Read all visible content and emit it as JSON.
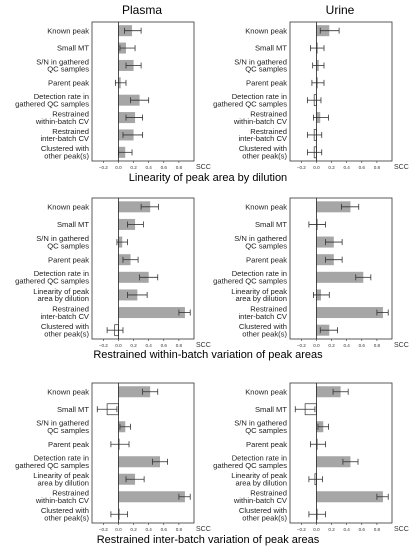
{
  "columns": [
    "Plasma",
    "Urine"
  ],
  "row_titles": [
    "Linearity of peak area by dilution",
    "Restrained within-batch variation of peak areas",
    "Restrained inter-batch variation of peak areas"
  ],
  "axis": {
    "label": "SCC",
    "ticks": [
      "−0.2",
      "0.0",
      "0.2",
      "0.4",
      "0.6",
      "0.8"
    ],
    "tick_values": [
      -0.2,
      0.0,
      0.2,
      0.4,
      0.6,
      0.8
    ],
    "xlim": [
      -0.35,
      1.0
    ]
  },
  "colors": {
    "bar_fill": "#a6a6a6",
    "open_fill": "#ffffff",
    "stroke": "#333333",
    "frame": "#333333",
    "zero_line": "#222222"
  },
  "chart_data": [
    {
      "type": "bar",
      "orientation": "horizontal",
      "panel": "Plasma / Linearity of peak area by dilution",
      "categories": [
        "Known peak",
        "Small MT",
        "S/N in gathered\nQC samples",
        "Parent peak",
        "Detection rate in\ngathered QC samples",
        "Restrained\nwithin-batch CV",
        "Restrained\ninter-batch CV",
        "Clustered with\nother peak(s)"
      ],
      "values": [
        0.18,
        0.1,
        0.2,
        0.03,
        0.28,
        0.22,
        0.2,
        0.09
      ],
      "error_low": [
        0.08,
        0.02,
        0.1,
        -0.04,
        0.16,
        0.1,
        0.06,
        0.0
      ],
      "error_high": [
        0.3,
        0.22,
        0.3,
        0.1,
        0.4,
        0.32,
        0.32,
        0.18
      ],
      "xlabel": "SCC",
      "xlim": [
        -0.35,
        1.0
      ],
      "grid": false
    },
    {
      "type": "bar",
      "orientation": "horizontal",
      "panel": "Urine / Linearity of peak area by dilution",
      "categories": [
        "Known peak",
        "Small MT",
        "S/N in gathered\nQC samples",
        "Parent peak",
        "Detection rate in\ngathered QC samples",
        "Restrained\nwithin-batch CV",
        "Restrained\ninter-batch CV",
        "Clustered with\nother peak(s)"
      ],
      "values": [
        0.17,
        0.02,
        0.03,
        0.02,
        -0.03,
        0.05,
        -0.03,
        -0.03
      ],
      "error_low": [
        0.05,
        -0.08,
        -0.05,
        -0.06,
        -0.12,
        -0.04,
        -0.12,
        -0.12
      ],
      "error_high": [
        0.3,
        0.1,
        0.1,
        0.1,
        0.06,
        0.16,
        0.07,
        0.07
      ],
      "xlabel": "SCC",
      "xlim": [
        -0.35,
        1.0
      ],
      "grid": false
    },
    {
      "type": "bar",
      "orientation": "horizontal",
      "panel": "Plasma / Restrained within-batch variation of peak areas",
      "categories": [
        "Known peak",
        "Small MT",
        "S/N in gathered\nQC samples",
        "Parent peak",
        "Detection rate in\ngathered QC samples",
        "Linearity of peak\narea by dilution",
        "Restrained\ninter-batch CV",
        "Clustered with\nother peak(s)"
      ],
      "values": [
        0.42,
        0.22,
        0.05,
        0.16,
        0.4,
        0.25,
        0.88,
        -0.05
      ],
      "error_low": [
        0.3,
        0.12,
        -0.02,
        0.06,
        0.28,
        0.12,
        0.8,
        -0.15
      ],
      "error_high": [
        0.53,
        0.33,
        0.12,
        0.26,
        0.52,
        0.38,
        0.95,
        0.06
      ],
      "xlabel": "SCC",
      "xlim": [
        -0.35,
        1.0
      ],
      "grid": false
    },
    {
      "type": "bar",
      "orientation": "horizontal",
      "panel": "Urine / Restrained within-batch variation of peak areas",
      "categories": [
        "Known peak",
        "Small MT",
        "S/N in gathered\nQC samples",
        "Parent peak",
        "Detection rate in\ngathered QC samples",
        "Linearity of peak\narea by dilution",
        "Restrained\ninter-batch CV",
        "Clustered with\nother peak(s)"
      ],
      "values": [
        0.45,
        0.02,
        0.23,
        0.23,
        0.62,
        0.06,
        0.88,
        0.17
      ],
      "error_low": [
        0.33,
        -0.1,
        0.12,
        0.12,
        0.52,
        -0.04,
        0.8,
        0.05
      ],
      "error_high": [
        0.56,
        0.12,
        0.34,
        0.34,
        0.72,
        0.17,
        0.95,
        0.28
      ],
      "xlabel": "SCC",
      "xlim": [
        -0.35,
        1.0
      ],
      "grid": false
    },
    {
      "type": "bar",
      "orientation": "horizontal",
      "panel": "Plasma / Restrained inter-batch variation of peak areas",
      "categories": [
        "Known peak",
        "Small MT",
        "S/N in gathered\nQC samples",
        "Parent peak",
        "Detection rate in\ngathered QC samples",
        "Linearity of peak\narea by dilution",
        "Restrained\nwithin-batch CV",
        "Clustered with\nother peak(s)"
      ],
      "values": [
        0.42,
        -0.15,
        0.09,
        0.02,
        0.55,
        0.22,
        0.88,
        0.02
      ],
      "error_low": [
        0.32,
        -0.28,
        0.02,
        -0.1,
        0.45,
        0.1,
        0.8,
        -0.1
      ],
      "error_high": [
        0.52,
        -0.02,
        0.16,
        0.14,
        0.65,
        0.34,
        0.95,
        0.12
      ],
      "xlabel": "SCC",
      "xlim": [
        -0.35,
        1.0
      ],
      "grid": false
    },
    {
      "type": "bar",
      "orientation": "horizontal",
      "panel": "Urine / Restrained inter-batch variation of peak areas",
      "categories": [
        "Known peak",
        "Small MT",
        "S/N in gathered\nQC samples",
        "Parent peak",
        "Detection rate in\ngathered QC samples",
        "Linearity of peak\narea by dilution",
        "Restrained\nwithin-batch CV",
        "Clustered with\nother peak(s)"
      ],
      "values": [
        0.32,
        -0.15,
        0.09,
        0.02,
        0.45,
        -0.02,
        0.88,
        0.02
      ],
      "error_low": [
        0.22,
        -0.28,
        0.02,
        -0.08,
        0.35,
        -0.1,
        0.8,
        -0.1
      ],
      "error_high": [
        0.42,
        -0.02,
        0.16,
        0.12,
        0.55,
        0.08,
        0.95,
        0.12
      ],
      "xlabel": "SCC",
      "xlim": [
        -0.35,
        1.0
      ],
      "grid": false
    }
  ]
}
